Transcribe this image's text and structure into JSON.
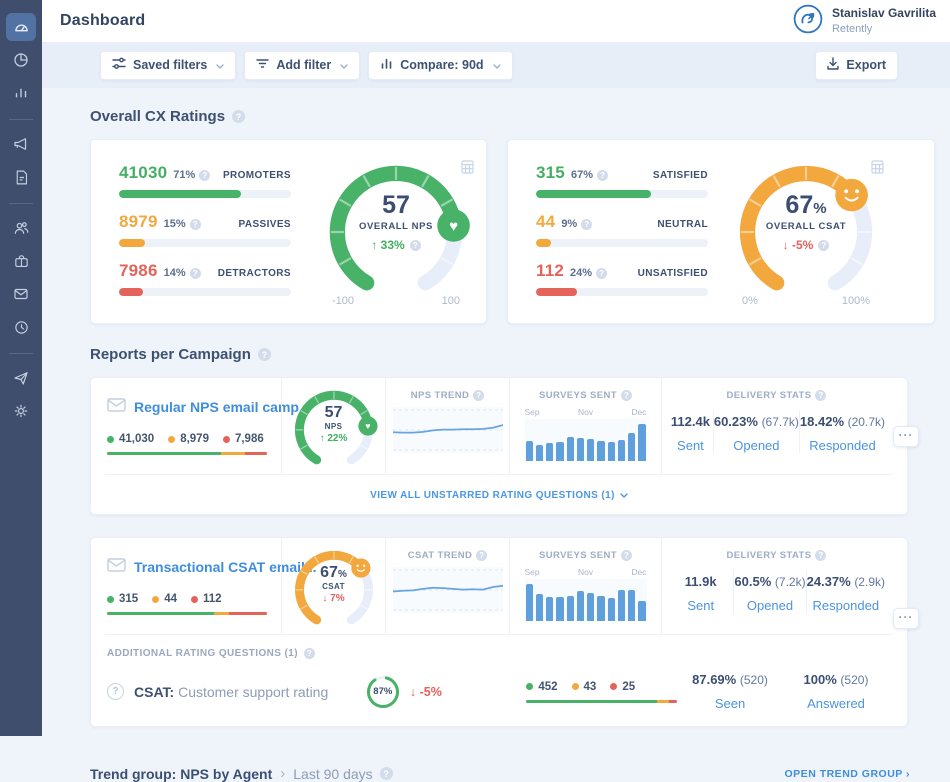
{
  "colors": {
    "green": "#49b269",
    "orange": "#f2a83d",
    "red": "#e4635b",
    "blue_link": "#4a94e0",
    "navy": "#3b4d70",
    "sidebar": "#3f4e6d",
    "bar_blue": "#5fa0dc"
  },
  "sidebar": {
    "icons": [
      "dashboard-gauge-icon",
      "pie-chart-icon",
      "bar-chart-icon",
      "megaphone-icon",
      "document-icon",
      "users-icon",
      "briefcase-icon",
      "mail-icon",
      "clock-icon",
      "paper-plane-icon",
      "gear-icon"
    ]
  },
  "header": {
    "title": "Dashboard",
    "user": {
      "name": "Stanislav Gavrilita",
      "org": "Retently"
    }
  },
  "toolbar": {
    "saved_filters": "Saved filters",
    "add_filter": "Add filter",
    "compare": "Compare: 90d",
    "export": "Export"
  },
  "overall": {
    "title": "Overall CX Ratings",
    "nps": {
      "rows": [
        {
          "value": "41030",
          "pct": "71%",
          "label": "PROMOTERS",
          "pct_num": 71
        },
        {
          "value": "8979",
          "pct": "15%",
          "label": "PASSIVES",
          "pct_num": 15
        },
        {
          "value": "7986",
          "pct": "14%",
          "label": "DETRACTORS",
          "pct_num": 14
        }
      ],
      "gauge": {
        "value": "57",
        "suffix": "",
        "label": "OVERALL NPS",
        "delta": "↑ 33%",
        "min": "-100",
        "max": "100"
      }
    },
    "csat": {
      "rows": [
        {
          "value": "315",
          "pct": "67%",
          "label": "SATISFIED",
          "pct_num": 67
        },
        {
          "value": "44",
          "pct": "9%",
          "label": "NEUTRAL",
          "pct_num": 9
        },
        {
          "value": "112",
          "pct": "24%",
          "label": "UNSATISFIED",
          "pct_num": 24
        }
      ],
      "gauge": {
        "value": "67",
        "suffix": "%",
        "label": "OVERALL CSAT",
        "delta": "↓ -5%",
        "min": "0%",
        "max": "100%"
      }
    }
  },
  "reports": {
    "title": "Reports per Campaign",
    "view_all": "VIEW ALL UNSTARRED RATING QUESTIONS (1)",
    "campaigns": [
      {
        "name": "Regular NPS email camp...",
        "legend": [
          {
            "value": "41,030",
            "pct": 71
          },
          {
            "value": "8,979",
            "pct": 15
          },
          {
            "value": "7,986",
            "pct": 14
          }
        ],
        "gauge": {
          "value": "57",
          "suffix": "",
          "label": "NPS",
          "delta": "↑ 22%"
        },
        "trend_label": "NPS TREND",
        "trend": [
          44,
          43,
          43,
          45,
          49,
          51,
          51,
          52,
          52,
          53,
          56,
          63
        ],
        "surveys_label": "SURVEYS SENT",
        "months": [
          "Sep",
          "Nov",
          "Dec"
        ],
        "bars": [
          48,
          38,
          42,
          46,
          56,
          54,
          52,
          47,
          45,
          51,
          66,
          88
        ],
        "delivery_label": "DELIVERY STATS",
        "stats": [
          {
            "value": "112.4k",
            "sub": "",
            "label": "Sent"
          },
          {
            "value": "60.23%",
            "sub": "(67.7k)",
            "label": "Opened"
          },
          {
            "value": "18.42%",
            "sub": "(20.7k)",
            "label": "Responded"
          }
        ]
      },
      {
        "name": "Transactional CSAT email...",
        "legend": [
          {
            "value": "315",
            "pct": 67
          },
          {
            "value": "44",
            "pct": 9
          },
          {
            "value": "112",
            "pct": 24
          }
        ],
        "gauge": {
          "value": "67",
          "suffix": "%",
          "label": "CSAT",
          "delta": "↓ 7%"
        },
        "trend_label": "CSAT TREND",
        "trend": [
          46,
          48,
          49,
          53,
          56,
          55,
          53,
          51,
          52,
          51,
          58,
          61
        ],
        "surveys_label": "SURVEYS SENT",
        "months": [
          "Sep",
          "Nov",
          "Dec"
        ],
        "bars": [
          88,
          64,
          58,
          58,
          60,
          72,
          66,
          60,
          54,
          74,
          74,
          48
        ],
        "delivery_label": "DELIVERY STATS",
        "stats": [
          {
            "value": "11.9k",
            "sub": "",
            "label": "Sent"
          },
          {
            "value": "60.5%",
            "sub": "(7.2k)",
            "label": "Opened"
          },
          {
            "value": "24.37%",
            "sub": "(2.9k)",
            "label": "Responded"
          }
        ]
      }
    ],
    "additional": {
      "label": "ADDITIONAL RATING QUESTIONS (1)",
      "question_prefix": "CSAT:",
      "question_text": " Customer support rating",
      "ring_value": "87%",
      "ring_pct": 87,
      "delta": "↓ -5%",
      "legend": [
        {
          "value": "452",
          "pct": 87
        },
        {
          "value": "43",
          "pct": 8
        },
        {
          "value": "25",
          "pct": 5
        }
      ],
      "stats": [
        {
          "value": "87.69%",
          "sub": "(520)",
          "label": "Seen"
        },
        {
          "value": "100%",
          "sub": "(520)",
          "label": "Answered"
        }
      ]
    }
  },
  "footer": {
    "title": "Trend group: NPS by Agent",
    "sep": "›",
    "period": "Last 90 days",
    "link": "OPEN TREND GROUP ›"
  }
}
